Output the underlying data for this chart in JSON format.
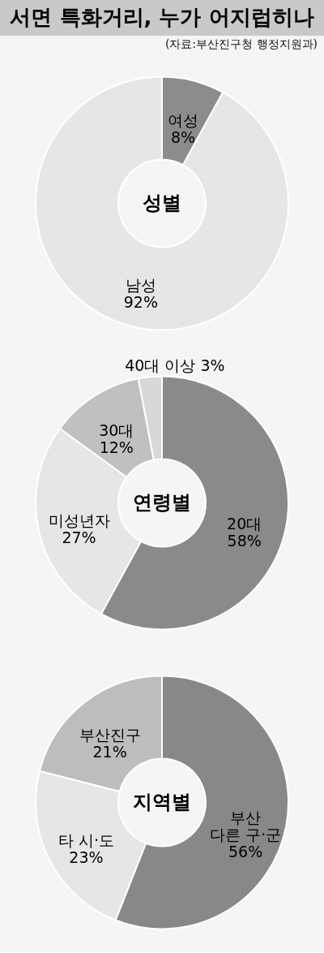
{
  "chart_data": [
    {
      "type": "other",
      "title": "서면 특화거리, 누가 어지럽히나",
      "annotations": [
        "(자료:부산진구청 행정지원과)"
      ]
    },
    {
      "type": "donut",
      "title": "성별",
      "categories": [
        "여성",
        "남성"
      ],
      "values": [
        8,
        92
      ],
      "colors": [
        "#8c8c8c",
        "#e6e6e6"
      ],
      "value_labels": [
        "8%",
        "92%"
      ]
    },
    {
      "type": "donut",
      "title": "연령별",
      "categories": [
        "20대",
        "미성년자",
        "30대",
        "40대 이상"
      ],
      "values": [
        58,
        27,
        12,
        3
      ],
      "colors": [
        "#8a8a8a",
        "#e6e6e6",
        "#c0c0c0",
        "#d8d8d8"
      ],
      "value_labels": [
        "58%",
        "27%",
        "12%",
        "3%"
      ]
    },
    {
      "type": "donut",
      "title": "지역별",
      "categories": [
        "부산 다른 구·군",
        "타 시·도",
        "부산진구"
      ],
      "values": [
        56,
        23,
        21
      ],
      "colors": [
        "#888888",
        "#e6e6e6",
        "#bdbdbd"
      ],
      "value_labels": [
        "56%",
        "23%",
        "21%"
      ]
    }
  ]
}
